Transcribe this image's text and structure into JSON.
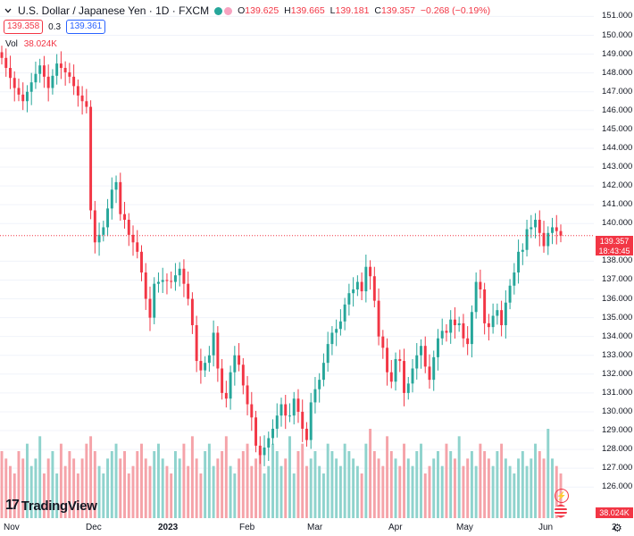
{
  "header": {
    "symbol": "U.S. Dollar / Japanese Yen · 1D · FXCM",
    "ohlc": {
      "o_label": "O",
      "o_value": "139.625",
      "h_label": "H",
      "h_value": "139.665",
      "l_label": "L",
      "l_value": "139.181",
      "c_label": "C",
      "c_value": "139.357",
      "change": "−0.268 (−0.19%)"
    },
    "sell_price": "139.358",
    "spread": "0.3",
    "buy_price": "139.361",
    "volume_label": "Vol",
    "volume_value": "38.024K"
  },
  "logo": {
    "mark": "17",
    "text": "TradingView"
  },
  "price_tag": {
    "price": "139.357",
    "countdown": "18:43:45"
  },
  "volume_tag": "38.024K",
  "colors": {
    "up": "#26a69a",
    "down": "#f23645",
    "up_vol": "#8fd3cd",
    "down_vol": "#f5a3a9",
    "grid": "#f0f3fa"
  },
  "chart_data": {
    "type": "candlestick",
    "yaxis_ticks": [
      "151.000",
      "150.000",
      "149.000",
      "148.000",
      "147.000",
      "146.000",
      "145.000",
      "144.000",
      "143.000",
      "142.000",
      "141.000",
      "140.000",
      "138.000",
      "137.000",
      "136.000",
      "135.000",
      "134.000",
      "133.000",
      "132.000",
      "131.000",
      "130.000",
      "129.000",
      "128.000",
      "127.000",
      "126.000"
    ],
    "xaxis_ticks": [
      {
        "label": "Nov",
        "bold": false
      },
      {
        "label": "Dec",
        "bold": false
      },
      {
        "label": "2023",
        "bold": true
      },
      {
        "label": "Feb",
        "bold": false
      },
      {
        "label": "Mar",
        "bold": false
      },
      {
        "label": "Apr",
        "bold": false
      },
      {
        "label": "May",
        "bold": false
      },
      {
        "label": "Jun",
        "bold": false
      },
      {
        "label": "2",
        "bold": false
      }
    ],
    "last_price": 139.357,
    "close_path": [
      [
        0,
        148.8
      ],
      [
        3,
        147.2
      ],
      [
        5,
        146.5
      ],
      [
        7,
        147.5
      ],
      [
        9,
        148.4
      ],
      [
        11,
        147.2
      ],
      [
        13,
        148.5
      ],
      [
        16,
        147.8
      ],
      [
        18,
        146.8
      ],
      [
        20,
        146.2
      ],
      [
        21,
        140.7
      ],
      [
        22,
        139.0
      ],
      [
        24,
        139.8
      ],
      [
        26,
        141.8
      ],
      [
        27,
        142.2
      ],
      [
        28,
        140.5
      ],
      [
        29,
        140.2
      ],
      [
        30,
        139.4
      ],
      [
        31,
        139.0
      ],
      [
        32,
        138.5
      ],
      [
        33,
        137.4
      ],
      [
        34,
        136.0
      ],
      [
        35,
        135.0
      ],
      [
        36,
        136.8
      ],
      [
        38,
        137.0
      ],
      [
        40,
        136.9
      ],
      [
        42,
        137.6
      ],
      [
        43,
        136.8
      ],
      [
        44,
        136.0
      ],
      [
        45,
        134.6
      ],
      [
        46,
        132.7
      ],
      [
        47,
        132.2
      ],
      [
        49,
        133.0
      ],
      [
        50,
        134.2
      ],
      [
        51,
        132.3
      ],
      [
        52,
        131.0
      ],
      [
        53,
        130.7
      ],
      [
        54,
        132.1
      ],
      [
        55,
        133.0
      ],
      [
        56,
        132.5
      ],
      [
        57,
        131.4
      ],
      [
        58,
        130.4
      ],
      [
        59,
        129.7
      ],
      [
        60,
        128.2
      ],
      [
        61,
        127.7
      ],
      [
        62,
        128.1
      ],
      [
        63,
        128.6
      ],
      [
        64,
        129.1
      ],
      [
        65,
        129.8
      ],
      [
        66,
        130.4
      ],
      [
        67,
        129.8
      ],
      [
        68,
        129.8
      ],
      [
        69,
        130.7
      ],
      [
        70,
        130.0
      ],
      [
        71,
        129.1
      ],
      [
        72,
        128.5
      ],
      [
        73,
        130.5
      ],
      [
        74,
        131.2
      ],
      [
        75,
        131.7
      ],
      [
        76,
        132.6
      ],
      [
        77,
        133.6
      ],
      [
        78,
        134.2
      ],
      [
        79,
        134.4
      ],
      [
        80,
        134.8
      ],
      [
        81,
        135.7
      ],
      [
        82,
        136.3
      ],
      [
        83,
        136.5
      ],
      [
        84,
        136.9
      ],
      [
        85,
        136.4
      ],
      [
        86,
        137.7
      ],
      [
        87,
        137.2
      ],
      [
        88,
        135.9
      ],
      [
        89,
        134.0
      ],
      [
        90,
        133.4
      ],
      [
        91,
        132.1
      ],
      [
        92,
        131.6
      ],
      [
        93,
        132.8
      ],
      [
        94,
        132.7
      ],
      [
        95,
        131.0
      ],
      [
        96,
        131.5
      ],
      [
        97,
        132.3
      ],
      [
        98,
        133.0
      ],
      [
        99,
        133.5
      ],
      [
        100,
        132.4
      ],
      [
        101,
        131.7
      ],
      [
        102,
        132.9
      ],
      [
        103,
        133.9
      ],
      [
        104,
        134.3
      ],
      [
        105,
        134.2
      ],
      [
        106,
        134.9
      ],
      [
        107,
        134.6
      ],
      [
        108,
        134.7
      ],
      [
        109,
        133.9
      ],
      [
        110,
        133.6
      ],
      [
        111,
        135.3
      ],
      [
        112,
        136.9
      ],
      [
        113,
        136.5
      ],
      [
        114,
        134.7
      ],
      [
        115,
        134.5
      ],
      [
        116,
        135.1
      ],
      [
        117,
        135.4
      ],
      [
        118,
        134.6
      ],
      [
        119,
        135.8
      ],
      [
        120,
        136.7
      ],
      [
        121,
        137.4
      ],
      [
        122,
        138.5
      ],
      [
        123,
        138.6
      ],
      [
        124,
        139.7
      ],
      [
        125,
        139.8
      ],
      [
        126,
        140.2
      ],
      [
        127,
        139.5
      ],
      [
        128,
        138.8
      ],
      [
        129,
        139.5
      ],
      [
        130,
        139.8
      ],
      [
        131,
        139.6
      ],
      [
        132,
        139.357
      ]
    ],
    "volume_scale_note": "relative volume bars, latest 38.024K",
    "volume_k": [
      9,
      8,
      7,
      6,
      9,
      8,
      10,
      7,
      8,
      11,
      6,
      8,
      9,
      6,
      10,
      7,
      9,
      8,
      6,
      8,
      10,
      11,
      9,
      7,
      6,
      8,
      9,
      10,
      8,
      9,
      6,
      7,
      9,
      10,
      8,
      7,
      9,
      10,
      8,
      7,
      6,
      9,
      8,
      10,
      7,
      11,
      8,
      6,
      9,
      10,
      7,
      8,
      9,
      11,
      7,
      6,
      8,
      9,
      10,
      7,
      8,
      9,
      6,
      7,
      10,
      9,
      7,
      8,
      11,
      6,
      9,
      10,
      7,
      8,
      9,
      7,
      6,
      10,
      9,
      8,
      7,
      10,
      9,
      8,
      7,
      6,
      10,
      12,
      9,
      8,
      7,
      11,
      9,
      8,
      7,
      10,
      8,
      7,
      9,
      10,
      6,
      7,
      8,
      9,
      7,
      10,
      9,
      8,
      11,
      7,
      8,
      9,
      7,
      10,
      9,
      8,
      7,
      9,
      10,
      8,
      7,
      6,
      8,
      9,
      7,
      8,
      10,
      9,
      8,
      12,
      8,
      7,
      6
    ]
  }
}
